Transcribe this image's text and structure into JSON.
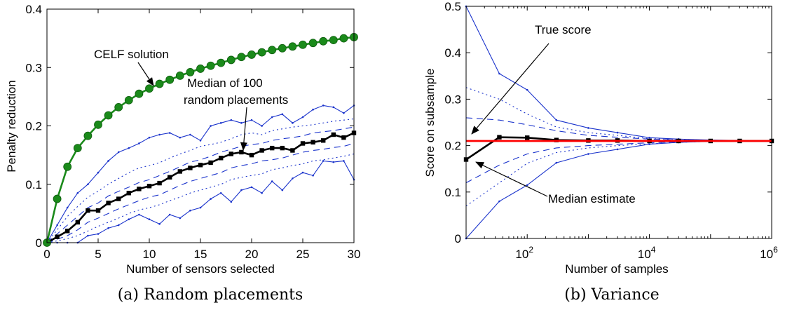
{
  "chart_data": [
    {
      "type": "line",
      "xlabel": "Number of sensors selected",
      "ylabel": "Penalty reduction",
      "caption": "(a) Random placements",
      "xlim": [
        0,
        30
      ],
      "ylim": [
        0,
        0.4
      ],
      "xticks": [
        "0",
        "5",
        "10",
        "15",
        "20",
        "25",
        "30"
      ],
      "yticks": [
        "0",
        "0.1",
        "0.2",
        "0.3",
        "0.4"
      ],
      "annotations": [
        "CELF solution",
        "Median of 100",
        "random placements"
      ],
      "series": [
        {
          "name": "CELF solution",
          "style": "solid",
          "marker": "circle",
          "color": "#1a8a1a",
          "x": [
            0,
            1,
            2,
            3,
            4,
            5,
            6,
            7,
            8,
            9,
            10,
            11,
            12,
            13,
            14,
            15,
            16,
            17,
            18,
            19,
            20,
            21,
            22,
            23,
            24,
            25,
            26,
            27,
            28,
            29,
            30
          ],
          "values": [
            0,
            0.075,
            0.13,
            0.162,
            0.183,
            0.202,
            0.218,
            0.232,
            0.244,
            0.255,
            0.264,
            0.272,
            0.279,
            0.286,
            0.292,
            0.298,
            0.303,
            0.308,
            0.313,
            0.318,
            0.322,
            0.326,
            0.33,
            0.333,
            0.336,
            0.339,
            0.342,
            0.345,
            0.347,
            0.35,
            0.352
          ]
        },
        {
          "name": "Median of 100 random placements",
          "style": "solid",
          "marker": "square",
          "color": "#000000",
          "x": [
            0,
            1,
            2,
            3,
            4,
            5,
            6,
            7,
            8,
            9,
            10,
            11,
            12,
            13,
            14,
            15,
            16,
            17,
            18,
            19,
            20,
            21,
            22,
            23,
            24,
            25,
            26,
            27,
            28,
            29,
            30
          ],
          "values": [
            0,
            0.01,
            0.02,
            0.035,
            0.055,
            0.055,
            0.068,
            0.075,
            0.085,
            0.092,
            0.097,
            0.102,
            0.112,
            0.122,
            0.128,
            0.133,
            0.137,
            0.145,
            0.152,
            0.155,
            0.15,
            0.158,
            0.162,
            0.162,
            0.158,
            0.17,
            0.172,
            0.175,
            0.185,
            0.18,
            0.188
          ]
        },
        {
          "style": "solid",
          "color": "#1a33cc",
          "x": [
            0,
            1,
            2,
            3,
            4,
            5,
            6,
            7,
            8,
            9,
            10,
            11,
            12,
            13,
            14,
            15,
            16,
            17,
            18,
            19,
            20,
            21,
            22,
            23,
            24,
            25,
            26,
            27,
            28,
            29,
            30
          ],
          "values": [
            0,
            0.03,
            0.06,
            0.085,
            0.1,
            0.12,
            0.14,
            0.155,
            0.162,
            0.17,
            0.18,
            0.185,
            0.188,
            0.18,
            0.185,
            0.175,
            0.2,
            0.205,
            0.21,
            0.205,
            0.21,
            0.2,
            0.215,
            0.22,
            0.205,
            0.215,
            0.228,
            0.235,
            0.232,
            0.222,
            0.235
          ]
        },
        {
          "style": "dotted",
          "color": "#1a33cc",
          "x": [
            0,
            1,
            2,
            3,
            4,
            5,
            6,
            7,
            8,
            9,
            10,
            11,
            12,
            13,
            14,
            15,
            16,
            17,
            18,
            19,
            20,
            21,
            22,
            23,
            24,
            25,
            26,
            27,
            28,
            29,
            30
          ],
          "values": [
            0,
            0.022,
            0.045,
            0.062,
            0.078,
            0.088,
            0.1,
            0.11,
            0.12,
            0.128,
            0.132,
            0.137,
            0.145,
            0.152,
            0.158,
            0.165,
            0.168,
            0.172,
            0.178,
            0.185,
            0.188,
            0.185,
            0.192,
            0.195,
            0.198,
            0.2,
            0.202,
            0.205,
            0.208,
            0.21,
            0.212
          ]
        },
        {
          "style": "dashed",
          "color": "#1a33cc",
          "x": [
            0,
            1,
            2,
            3,
            4,
            5,
            6,
            7,
            8,
            9,
            10,
            11,
            12,
            13,
            14,
            15,
            16,
            17,
            18,
            19,
            20,
            21,
            22,
            23,
            24,
            25,
            26,
            27,
            28,
            29,
            30
          ],
          "values": [
            0,
            0.015,
            0.03,
            0.045,
            0.06,
            0.068,
            0.08,
            0.088,
            0.095,
            0.103,
            0.108,
            0.115,
            0.122,
            0.13,
            0.138,
            0.142,
            0.148,
            0.155,
            0.16,
            0.165,
            0.168,
            0.17,
            0.175,
            0.178,
            0.18,
            0.183,
            0.188,
            0.19,
            0.192,
            0.195,
            0.198
          ]
        },
        {
          "style": "dashed",
          "color": "#1a33cc",
          "x": [
            0,
            1,
            2,
            3,
            4,
            5,
            6,
            7,
            8,
            9,
            10,
            11,
            12,
            13,
            14,
            15,
            16,
            17,
            18,
            19,
            20,
            21,
            22,
            23,
            24,
            25,
            26,
            27,
            28,
            29,
            30
          ],
          "values": [
            0,
            0.006,
            0.012,
            0.022,
            0.035,
            0.042,
            0.05,
            0.058,
            0.065,
            0.072,
            0.078,
            0.082,
            0.09,
            0.098,
            0.105,
            0.11,
            0.115,
            0.12,
            0.128,
            0.132,
            0.135,
            0.14,
            0.142,
            0.145,
            0.15,
            0.155,
            0.158,
            0.16,
            0.163,
            0.165,
            0.17
          ]
        },
        {
          "style": "dotted",
          "color": "#1a33cc",
          "x": [
            0,
            1,
            2,
            3,
            4,
            5,
            6,
            7,
            8,
            9,
            10,
            11,
            12,
            13,
            14,
            15,
            16,
            17,
            18,
            19,
            20,
            21,
            22,
            23,
            24,
            25,
            26,
            27,
            28,
            29,
            30
          ],
          "values": [
            0,
            0.003,
            0.007,
            0.012,
            0.02,
            0.028,
            0.035,
            0.042,
            0.05,
            0.056,
            0.06,
            0.065,
            0.072,
            0.078,
            0.085,
            0.09,
            0.095,
            0.1,
            0.108,
            0.112,
            0.115,
            0.118,
            0.125,
            0.128,
            0.132,
            0.135,
            0.14,
            0.142,
            0.145,
            0.148,
            0.152
          ]
        },
        {
          "style": "solid",
          "color": "#1a33cc",
          "x": [
            0,
            1,
            2,
            3,
            4,
            5,
            6,
            7,
            8,
            9,
            10,
            11,
            12,
            13,
            14,
            15,
            16,
            17,
            18,
            19,
            20,
            21,
            22,
            23,
            24,
            25,
            26,
            27,
            28,
            29,
            30
          ],
          "values": [
            0,
            0.0,
            0.0,
            0.0,
            0.012,
            0.015,
            0.025,
            0.03,
            0.04,
            0.048,
            0.04,
            0.032,
            0.048,
            0.042,
            0.055,
            0.06,
            0.075,
            0.085,
            0.07,
            0.09,
            0.095,
            0.085,
            0.105,
            0.09,
            0.11,
            0.12,
            0.115,
            0.14,
            0.138,
            0.14,
            0.108
          ]
        }
      ]
    },
    {
      "type": "line",
      "xlabel": "Number of samples",
      "ylabel": "Score on subsample",
      "caption": "(b) Variance",
      "xscale": "log",
      "xlim": [
        10,
        1000000
      ],
      "ylim": [
        0,
        0.5
      ],
      "xticks": [
        "10^2",
        "10^4",
        "10^6"
      ],
      "yticks": [
        "0",
        "0.1",
        "0.2",
        "0.3",
        "0.4",
        "0.5"
      ],
      "annotations": [
        "True score",
        "Median estimate"
      ],
      "series": [
        {
          "name": "True score",
          "style": "solid",
          "color": "#ff0000",
          "x": [
            10,
            1000000
          ],
          "values": [
            0.21,
            0.21
          ]
        },
        {
          "name": "Median estimate",
          "style": "solid",
          "marker": "square",
          "color": "#000000",
          "x": [
            10,
            35,
            100,
            300,
            1000,
            3000,
            10000,
            30000,
            100000,
            300000,
            1000000
          ],
          "values": [
            0.17,
            0.218,
            0.217,
            0.212,
            0.211,
            0.211,
            0.21,
            0.21,
            0.21,
            0.21,
            0.21
          ]
        },
        {
          "style": "solid",
          "color": "#1a33cc",
          "x": [
            10,
            35,
            100,
            300,
            1000,
            3000,
            10000,
            30000,
            100000,
            300000,
            1000000
          ],
          "values": [
            0.5,
            0.355,
            0.32,
            0.255,
            0.238,
            0.228,
            0.217,
            0.214,
            0.212,
            0.211,
            0.21
          ]
        },
        {
          "style": "dotted",
          "color": "#1a33cc",
          "x": [
            10,
            35,
            100,
            300,
            1000,
            3000,
            10000,
            30000,
            100000,
            300000,
            1000000
          ],
          "values": [
            0.325,
            0.3,
            0.268,
            0.24,
            0.228,
            0.222,
            0.215,
            0.213,
            0.211,
            0.21,
            0.21
          ]
        },
        {
          "style": "dashed",
          "color": "#1a33cc",
          "x": [
            10,
            35,
            100,
            300,
            1000,
            3000,
            10000,
            30000,
            100000,
            300000,
            1000000
          ],
          "values": [
            0.26,
            0.255,
            0.245,
            0.232,
            0.222,
            0.218,
            0.214,
            0.212,
            0.211,
            0.21,
            0.21
          ]
        },
        {
          "style": "dashed",
          "color": "#1a33cc",
          "x": [
            10,
            35,
            100,
            300,
            1000,
            3000,
            10000,
            30000,
            100000,
            300000,
            1000000
          ],
          "values": [
            0.12,
            0.158,
            0.182,
            0.195,
            0.2,
            0.203,
            0.206,
            0.208,
            0.209,
            0.21,
            0.21
          ]
        },
        {
          "style": "dotted",
          "color": "#1a33cc",
          "x": [
            10,
            35,
            100,
            300,
            1000,
            3000,
            10000,
            30000,
            100000,
            300000,
            1000000
          ],
          "values": [
            0.07,
            0.12,
            0.162,
            0.185,
            0.195,
            0.2,
            0.204,
            0.207,
            0.209,
            0.21,
            0.21
          ]
        },
        {
          "style": "solid",
          "color": "#1a33cc",
          "x": [
            10,
            35,
            100,
            300,
            1000,
            3000,
            10000,
            30000,
            100000,
            300000,
            1000000
          ],
          "values": [
            0,
            0.08,
            0.115,
            0.163,
            0.182,
            0.192,
            0.203,
            0.207,
            0.209,
            0.21,
            0.21
          ]
        }
      ]
    }
  ]
}
